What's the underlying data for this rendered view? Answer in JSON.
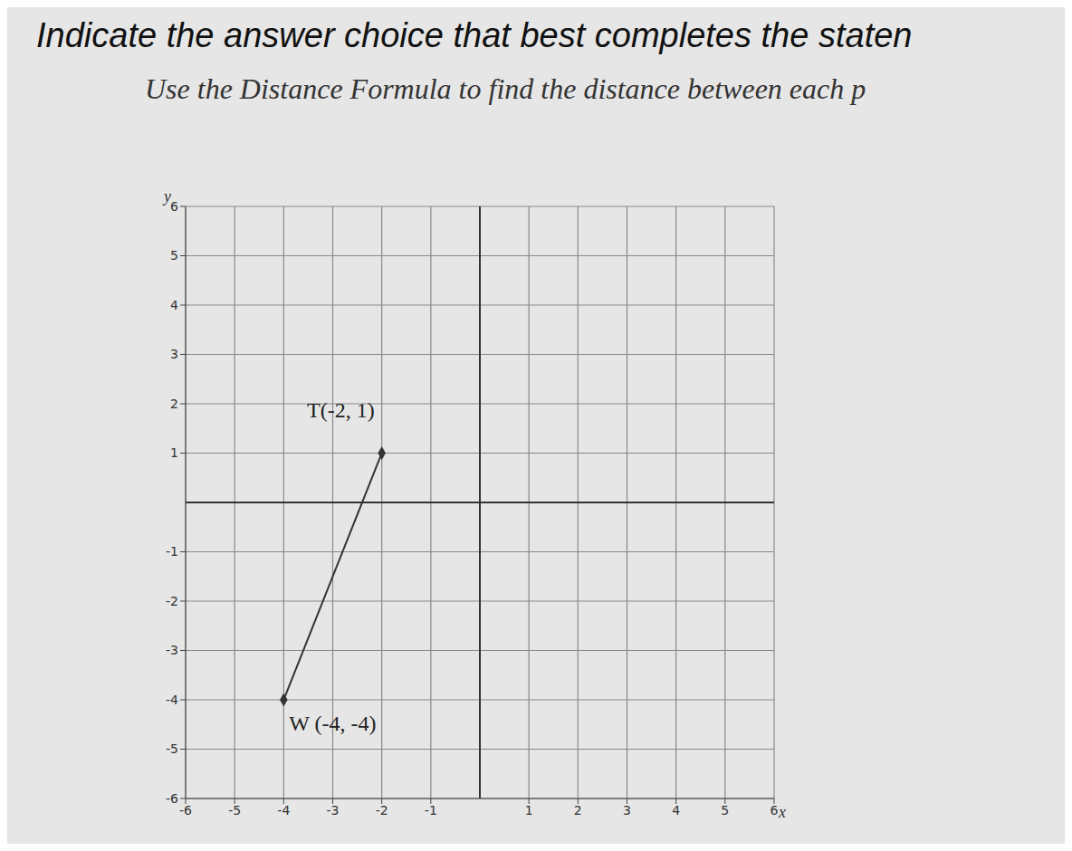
{
  "chart_data": {
    "type": "scatter",
    "title": "Indicate the answer choice that best completes the staten",
    "subtitle": "Use the Distance Formula to find the distance between each p",
    "x": [
      -2,
      -4
    ],
    "values": [
      1,
      -4
    ],
    "point_labels": [
      "T(-2, 1)",
      "W (-4, -4)"
    ],
    "xlabel": "x",
    "ylabel": "y",
    "xlim": [
      -6,
      6
    ],
    "ylim": [
      -6,
      6
    ],
    "xticks": [
      -6,
      -5,
      -4,
      -3,
      -2,
      -1,
      1,
      2,
      3,
      4,
      5,
      6
    ],
    "yticks": [
      -6,
      -5,
      -4,
      -3,
      -2,
      -1,
      1,
      2,
      3,
      4,
      5,
      6
    ],
    "grid": true,
    "color": "#333333",
    "marker": "diamond",
    "line_style": "solid"
  }
}
